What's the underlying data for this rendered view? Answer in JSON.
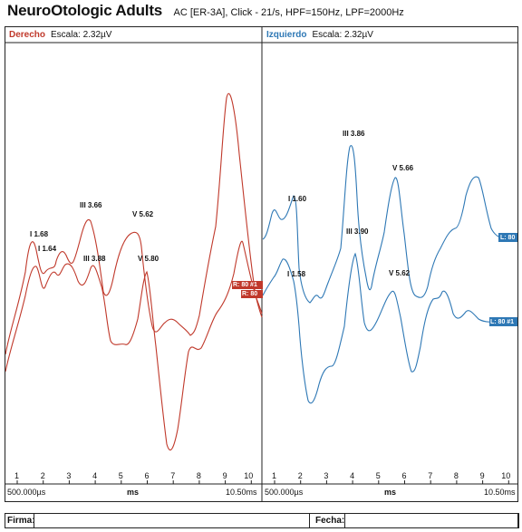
{
  "header": {
    "title": "NeuroOtologic Adults",
    "subtitle": "AC [ER-3A], Click - 21/s, HPF=150Hz, LPF=2000Hz"
  },
  "left": {
    "label": "Derecho",
    "scale": "Escala: 2.32µV",
    "color": "#c0392b",
    "axis_start": "500.000µs",
    "axis_unit": "ms",
    "axis_end": "10.50ms",
    "peaks": [
      {
        "text": "I 1.68"
      },
      {
        "text": "I 1.64"
      },
      {
        "text": "III 3.66"
      },
      {
        "text": "III 3.88"
      },
      {
        "text": "V 5.62"
      },
      {
        "text": "V 5.80"
      }
    ],
    "tags": [
      "R: 80 #1",
      "R: 80"
    ]
  },
  "right": {
    "label": "Izquierdo",
    "scale": "Escala: 2.32µV",
    "color": "#2e78b5",
    "axis_start": "500.000µs",
    "axis_unit": "ms",
    "axis_end": "10.50ms",
    "peaks": [
      {
        "text": "III 3.86"
      },
      {
        "text": "V 5.66"
      },
      {
        "text": "I 1.60"
      },
      {
        "text": "III 3.90"
      },
      {
        "text": "I 1.58"
      },
      {
        "text": "V 5.62"
      }
    ],
    "tags": [
      "L: 80",
      "L: 80 #1"
    ]
  },
  "ticks": [
    "1",
    "2",
    "3",
    "4",
    "5",
    "6",
    "7",
    "8",
    "9",
    "10"
  ],
  "footer": {
    "firma": "Firma:",
    "fecha": "Fecha:"
  }
}
